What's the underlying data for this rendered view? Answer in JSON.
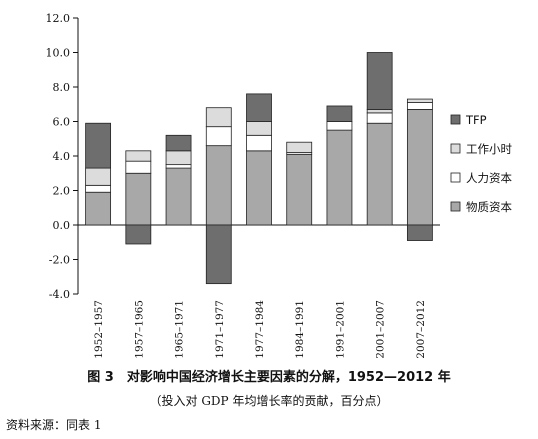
{
  "chart_data": {
    "type": "bar",
    "stacked": true,
    "title": "图 3　对影响中国经济增长主要因素的分解，1952—2012 年",
    "subtitle": "（投入对 GDP 年均增长率的贡献，百分点）",
    "source": "资料来源：同表 1",
    "categories": [
      "1952–1957",
      "1957–1965",
      "1965–1971",
      "1971–1977",
      "1977–1984",
      "1984–1991",
      "1991–2001",
      "2001–2007",
      "2007–2012"
    ],
    "series": [
      {
        "name": "物质资本",
        "color": "#a8a8a8",
        "values": [
          1.9,
          3.0,
          3.3,
          4.6,
          4.3,
          4.1,
          5.5,
          5.9,
          6.7
        ]
      },
      {
        "name": "人力资本",
        "color": "#ffffff",
        "values": [
          0.4,
          0.7,
          0.2,
          1.1,
          0.9,
          0.1,
          0.5,
          0.6,
          0.4
        ]
      },
      {
        "name": "工作小时",
        "color": "#dcdcdc",
        "values": [
          1.0,
          0.6,
          0.8,
          1.1,
          0.8,
          0.6,
          0.0,
          0.2,
          0.2
        ]
      },
      {
        "name": "TFP",
        "color": "#6e6e6e",
        "values": [
          2.6,
          -1.1,
          0.9,
          -3.4,
          1.6,
          0.0,
          0.9,
          3.3,
          -0.9
        ]
      }
    ],
    "legend_order": [
      "TFP",
      "工作小时",
      "人力资本",
      "物质资本"
    ],
    "legend_position": "right",
    "ylim": [
      -4.0,
      12.0
    ],
    "yticks": [
      "12.0",
      "10.0",
      "8.0",
      "6.0",
      "4.0",
      "2.0",
      "0.0",
      "-2.0",
      "-4.0"
    ],
    "xlabel": "",
    "ylabel": "",
    "grid": false
  },
  "text": {
    "caption": "图 3　对影响中国经济增长主要因素的分解，1952—2012 年",
    "subcaption": "（投入对 GDP 年均增长率的贡献，百分点）",
    "source": "资料来源：同表 1"
  }
}
